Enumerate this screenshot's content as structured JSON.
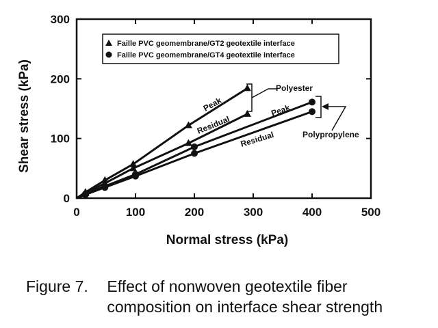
{
  "chart_data": {
    "type": "line",
    "xlabel": "Normal stress (kPa)",
    "ylabel": "Shear stress (kPa)",
    "xlim": [
      0,
      500
    ],
    "ylim": [
      0,
      300
    ],
    "xticks": [
      "0",
      "100",
      "200",
      "300",
      "400",
      "500"
    ],
    "yticks": [
      "0",
      "100",
      "200",
      "300"
    ],
    "grid": false,
    "legend_position": "top",
    "legend": [
      {
        "marker": "triangle",
        "label": "Faille PVC geomembrane/GT2 geotextile interface"
      },
      {
        "marker": "circle",
        "label": "Faille PVC geomembrane/GT4 geotextile interface"
      }
    ],
    "series": [
      {
        "marker": "triangle",
        "x": [
          0,
          15,
          48,
          96,
          190,
          290
        ],
        "y": [
          0,
          10,
          30,
          57,
          122,
          184
        ]
      },
      {
        "marker": "triangle",
        "x": [
          0,
          15,
          48,
          96,
          190,
          290
        ],
        "y": [
          0,
          8,
          25,
          50,
          92,
          141
        ]
      },
      {
        "marker": "circle",
        "x": [
          0,
          15,
          48,
          100,
          200,
          400
        ],
        "y": [
          0,
          7,
          20,
          40,
          86,
          161
        ]
      },
      {
        "marker": "circle",
        "x": [
          0,
          15,
          48,
          100,
          200,
          400
        ],
        "y": [
          0,
          6,
          18,
          37,
          75,
          145
        ]
      }
    ],
    "annotations": {
      "peak_1": "Peak",
      "residual_1": "Residual",
      "peak_2": "Peak",
      "residual_2": "Residual",
      "group_1": "Polyester",
      "group_2": "Polypropylene"
    }
  },
  "caption": {
    "figure_label": "Figure 7.",
    "line1": "Effect of nonwoven geotextile fiber",
    "line2": "composition on interface shear strength"
  }
}
